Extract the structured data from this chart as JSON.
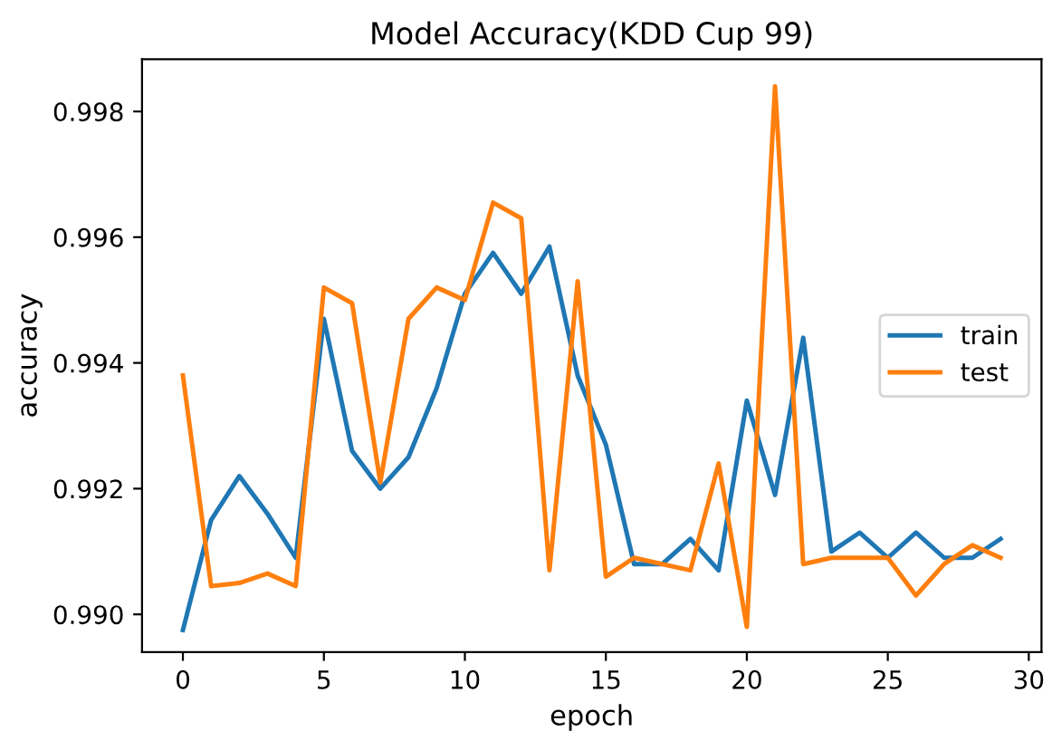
{
  "chart_data": {
    "type": "line",
    "title": "Model Accuracy(KDD Cup 99)",
    "xlabel": "epoch",
    "ylabel": "accuracy",
    "x": [
      0,
      1,
      2,
      3,
      4,
      5,
      6,
      7,
      8,
      9,
      10,
      11,
      12,
      13,
      14,
      15,
      16,
      17,
      18,
      19,
      20,
      21,
      22,
      23,
      24,
      25,
      26,
      27,
      28,
      29
    ],
    "series": [
      {
        "name": "train",
        "color": "#1f77b4",
        "values": [
          0.98975,
          0.9915,
          0.9922,
          0.9916,
          0.9909,
          0.9947,
          0.9926,
          0.992,
          0.9925,
          0.9936,
          0.9951,
          0.99575,
          0.9951,
          0.99585,
          0.9938,
          0.9927,
          0.9908,
          0.9908,
          0.9912,
          0.9907,
          0.9934,
          0.9919,
          0.9944,
          0.991,
          0.9913,
          0.9909,
          0.9913,
          0.9909,
          0.9909,
          0.9912
        ]
      },
      {
        "name": "test",
        "color": "#ff7f0e",
        "values": [
          0.9938,
          0.99045,
          0.9905,
          0.99065,
          0.99045,
          0.9952,
          0.99495,
          0.9921,
          0.9947,
          0.9952,
          0.995,
          0.99655,
          0.9963,
          0.9907,
          0.9953,
          0.9906,
          0.9909,
          0.9908,
          0.9907,
          0.9924,
          0.9898,
          0.9984,
          0.9908,
          0.9909,
          0.9909,
          0.9909,
          0.9903,
          0.9908,
          0.9911,
          0.9909
        ]
      }
    ],
    "xlim": [
      -1.45,
      30.45
    ],
    "xticks": [
      0,
      5,
      10,
      15,
      20,
      25,
      30
    ],
    "ylim": [
      0.9894,
      0.99883
    ],
    "yticks": [
      {
        "value": 0.99,
        "label": "0.990"
      },
      {
        "value": 0.992,
        "label": "0.992"
      },
      {
        "value": 0.994,
        "label": "0.994"
      },
      {
        "value": 0.996,
        "label": "0.996"
      },
      {
        "value": 0.998,
        "label": "0.998"
      }
    ],
    "legend": "right",
    "grid": false
  }
}
